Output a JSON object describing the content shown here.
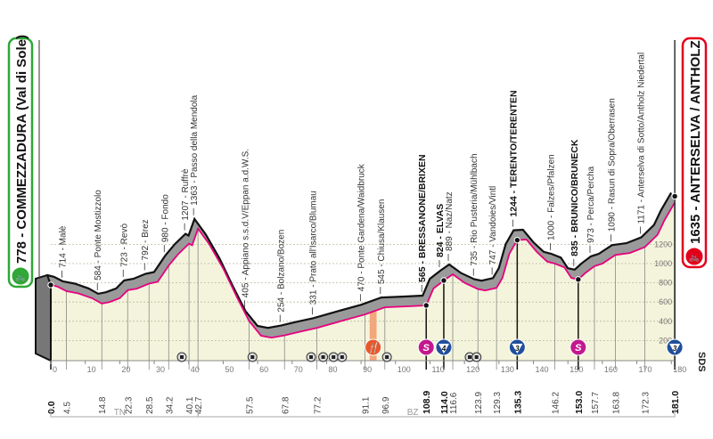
{
  "chart_data": {
    "type": "area",
    "xlim": [
      0,
      181
    ],
    "ylim": [
      0,
      1700
    ],
    "grid": true,
    "x_ticks": [
      0,
      10,
      20,
      30,
      40,
      50,
      60,
      70,
      80,
      90,
      100,
      110,
      120,
      130,
      140,
      150,
      160,
      170,
      180
    ],
    "y_ticks": [
      200,
      400,
      600,
      800,
      1000,
      1200
    ],
    "colors": {
      "profile_line": "#e6007e",
      "relief": "#9a9a9a",
      "fill": "#f4f4dc",
      "start": "#2ea836",
      "finish": "#e3001b",
      "sprint": "#c2188e",
      "kom": "#1f4f9c",
      "feed": "#e8582a"
    },
    "start": {
      "elev": "778",
      "name": "COMMEZZADURA (Val di Sole)",
      "label": "778 - COMMEZZADURA (Val di Sole)"
    },
    "finish": {
      "elev": "1635",
      "name": "ANTERSELVA / ANTHOLZ",
      "label": "1635 - ANTERSELVA / ANTHOLZ"
    },
    "profile": [
      [
        0,
        778
      ],
      [
        2,
        760
      ],
      [
        4.5,
        714
      ],
      [
        8,
        690
      ],
      [
        12,
        640
      ],
      [
        14.8,
        584
      ],
      [
        17,
        600
      ],
      [
        20,
        640
      ],
      [
        22.3,
        723
      ],
      [
        25,
        740
      ],
      [
        28.5,
        792
      ],
      [
        31,
        810
      ],
      [
        34.2,
        980
      ],
      [
        37,
        1100
      ],
      [
        40.1,
        1207
      ],
      [
        41,
        1190
      ],
      [
        42.7,
        1363
      ],
      [
        46,
        1200
      ],
      [
        50,
        950
      ],
      [
        54,
        650
      ],
      [
        57.5,
        405
      ],
      [
        61,
        250
      ],
      [
        64,
        230
      ],
      [
        67.8,
        254
      ],
      [
        72,
        290
      ],
      [
        77.2,
        331
      ],
      [
        84,
        400
      ],
      [
        91.1,
        470
      ],
      [
        96.9,
        545
      ],
      [
        103,
        555
      ],
      [
        108.9,
        565
      ],
      [
        111,
        740
      ],
      [
        114,
        824
      ],
      [
        116.6,
        889
      ],
      [
        120,
        800
      ],
      [
        123.9,
        735
      ],
      [
        126,
        720
      ],
      [
        129.3,
        747
      ],
      [
        131,
        850
      ],
      [
        133,
        1100
      ],
      [
        135.3,
        1244
      ],
      [
        138,
        1250
      ],
      [
        141,
        1120
      ],
      [
        144,
        1020
      ],
      [
        146.2,
        1000
      ],
      [
        149,
        960
      ],
      [
        151,
        850
      ],
      [
        153,
        835
      ],
      [
        155,
        900
      ],
      [
        157.7,
        973
      ],
      [
        160,
        1000
      ],
      [
        163.8,
        1090
      ],
      [
        168,
        1110
      ],
      [
        172.3,
        1171
      ],
      [
        176,
        1300
      ],
      [
        178,
        1450
      ],
      [
        181,
        1635
      ]
    ],
    "places": [
      {
        "km": 4.5,
        "label": "714 - Malè",
        "bold": false
      },
      {
        "km": 14.8,
        "label": "584 - Ponte Mostizzolo",
        "bold": false
      },
      {
        "km": 22.3,
        "label": "723 - Revò",
        "bold": false
      },
      {
        "km": 28.5,
        "label": "792 - Brez",
        "bold": false
      },
      {
        "km": 34.2,
        "label": "980 - Fondo",
        "bold": false
      },
      {
        "km": 40.1,
        "label": "1207 - Ruffrè",
        "bold": false
      },
      {
        "km": 42.7,
        "label": "1363 - Passo della Mendola",
        "bold": false
      },
      {
        "km": 57.5,
        "label": "405 - Appiano s.s.d.V/Eppan a.d.W.S.",
        "bold": false
      },
      {
        "km": 67.8,
        "label": "254 - Bolzano/Bozen",
        "bold": false
      },
      {
        "km": 77.2,
        "label": "331 - Prato all'Isarco/Blumau",
        "bold": false
      },
      {
        "km": 91.1,
        "label": "470 - Ponte Gardena/Waidbruck",
        "bold": false
      },
      {
        "km": 96.9,
        "label": "545 - Chiusa/Klausen",
        "bold": false
      },
      {
        "km": 108.9,
        "label": "565 - BRESSANONE/BRIXEN",
        "bold": true
      },
      {
        "km": 114.0,
        "label": "824 - ELVAS",
        "bold": true
      },
      {
        "km": 116.6,
        "label": "889 - Naz/Natz",
        "bold": false
      },
      {
        "km": 123.9,
        "label": "735 - Rio Pusteria/Mühlbach",
        "bold": false
      },
      {
        "km": 129.3,
        "label": "747 - Vandoies/Vintl",
        "bold": false
      },
      {
        "km": 135.3,
        "label": "1244 - TERENTO/TERENTEN",
        "bold": true
      },
      {
        "km": 146.2,
        "label": "1000 - Falzes/Pfalzen",
        "bold": false
      },
      {
        "km": 153.0,
        "label": "835 - BRUNICO/BRUNECK",
        "bold": true
      },
      {
        "km": 157.7,
        "label": "973 - Perca/Percha",
        "bold": false
      },
      {
        "km": 163.8,
        "label": "1090 - Rasun di Sopra/Oberrasen",
        "bold": false
      },
      {
        "km": 172.3,
        "label": "1171 - Anterselva di Sotto/Antholz Niedertal",
        "bold": false
      }
    ],
    "km_marks": [
      {
        "km": 0,
        "label": "0.0",
        "bold": true
      },
      {
        "km": 4.5,
        "label": "4.5",
        "bold": false
      },
      {
        "km": 14.8,
        "label": "14.8",
        "bold": false
      },
      {
        "km": 22.3,
        "label": "22.3",
        "bold": false
      },
      {
        "km": 28.5,
        "label": "28.5",
        "bold": false
      },
      {
        "km": 34.2,
        "label": "34.2",
        "bold": false
      },
      {
        "km": 40.1,
        "label": "40.1",
        "bold": false
      },
      {
        "km": 42.7,
        "label": "42.7",
        "bold": false
      },
      {
        "km": 57.5,
        "label": "57.5",
        "bold": false
      },
      {
        "km": 67.8,
        "label": "67.8",
        "bold": false
      },
      {
        "km": 77.2,
        "label": "77.2",
        "bold": false
      },
      {
        "km": 91.1,
        "label": "91.1",
        "bold": false
      },
      {
        "km": 96.9,
        "label": "96.9",
        "bold": false
      },
      {
        "km": 108.9,
        "label": "108.9",
        "bold": true
      },
      {
        "km": 114.0,
        "label": "114.0",
        "bold": true
      },
      {
        "km": 116.6,
        "label": "116.6",
        "bold": false
      },
      {
        "km": 123.9,
        "label": "123.9",
        "bold": false
      },
      {
        "km": 129.3,
        "label": "129.3",
        "bold": false
      },
      {
        "km": 135.3,
        "label": "135.3",
        "bold": true
      },
      {
        "km": 146.2,
        "label": "146.2",
        "bold": false
      },
      {
        "km": 153.0,
        "label": "153.0",
        "bold": true
      },
      {
        "km": 157.7,
        "label": "157.7",
        "bold": false
      },
      {
        "km": 163.8,
        "label": "163.8",
        "bold": false
      },
      {
        "km": 172.3,
        "label": "172.3",
        "bold": false
      },
      {
        "km": 181.0,
        "label": "181.0",
        "bold": true
      }
    ],
    "markers": [
      {
        "km": 108.9,
        "type": "sprint",
        "text": "S"
      },
      {
        "km": 114.0,
        "type": "kom",
        "text": "4"
      },
      {
        "km": 135.3,
        "type": "kom",
        "text": "3"
      },
      {
        "km": 153.0,
        "type": "sprint",
        "text": "S"
      },
      {
        "km": 181.0,
        "type": "kom",
        "text": "3"
      },
      {
        "km": 93.5,
        "type": "feed",
        "text": "🍴"
      }
    ],
    "small_markers_km": [
      38,
      58.5,
      75.5,
      79,
      82,
      84.5,
      97.5,
      121.5,
      123.5
    ],
    "feed_zone_km": [
      92.5,
      94.5
    ],
    "regions": [
      {
        "label": "TN",
        "from": 0,
        "to": 42.7
      },
      {
        "label": "BZ",
        "from": 42.7,
        "to": 181
      }
    ],
    "logo_text": "SDS"
  }
}
